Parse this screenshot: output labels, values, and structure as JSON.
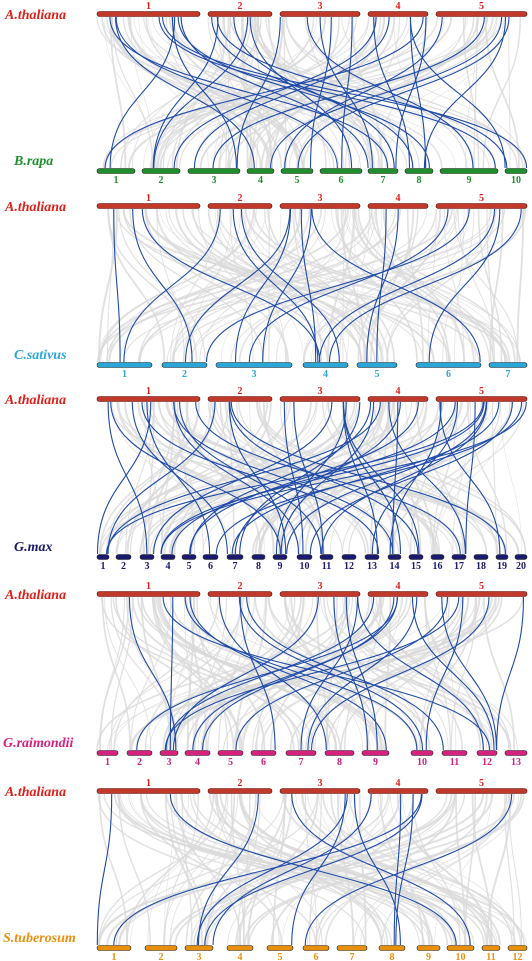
{
  "colors": {
    "background_link": "#d9d9d9",
    "synteny_link": "#1f4aa8",
    "thaliana_bar": "#c0392b"
  },
  "panels": [
    {
      "top_species": "A.thaliana",
      "top_color": "#e0201b",
      "top_chromosomes": [
        "1",
        "2",
        "3",
        "4",
        "5"
      ],
      "bottom_species": "B.rapa",
      "bottom_color": "#1f8f2e",
      "bottom_chromosomes": [
        "1",
        "2",
        "3",
        "4",
        "5",
        "6",
        "7",
        "8",
        "9",
        "10"
      ]
    },
    {
      "top_species": "A.thaliana",
      "top_color": "#e0201b",
      "top_chromosomes": [
        "1",
        "2",
        "3",
        "4",
        "5"
      ],
      "bottom_species": "C.sativus",
      "bottom_color": "#2ba6d9",
      "bottom_chromosomes": [
        "1",
        "2",
        "3",
        "4",
        "5",
        "6",
        "7"
      ]
    },
    {
      "top_species": "A.thaliana",
      "top_color": "#e0201b",
      "top_chromosomes": [
        "1",
        "2",
        "3",
        "4",
        "5"
      ],
      "bottom_species": "G.max",
      "bottom_color": "#1a1a6e",
      "bottom_chromosomes": [
        "1",
        "2",
        "3",
        "4",
        "5",
        "6",
        "7",
        "8",
        "9",
        "10",
        "11",
        "12",
        "13",
        "14",
        "15",
        "16",
        "17",
        "18",
        "19",
        "20"
      ]
    },
    {
      "top_species": "A.thaliana",
      "top_color": "#e0201b",
      "top_chromosomes": [
        "1",
        "2",
        "3",
        "4",
        "5"
      ],
      "bottom_species": "G.raimondii",
      "bottom_color": "#d6217f",
      "bottom_chromosomes": [
        "1",
        "2",
        "3",
        "4",
        "5",
        "6",
        "7",
        "8",
        "9",
        "10",
        "11",
        "12",
        "13"
      ]
    },
    {
      "top_species": "A.thaliana",
      "top_color": "#e0201b",
      "top_chromosomes": [
        "1",
        "2",
        "3",
        "4",
        "5"
      ],
      "bottom_species": "S.tuberosum",
      "bottom_color": "#e8900c",
      "bottom_chromosomes": [
        "1",
        "2",
        "3",
        "4",
        "5",
        "6",
        "7",
        "8",
        "9",
        "10",
        "11",
        "12"
      ]
    }
  ]
}
